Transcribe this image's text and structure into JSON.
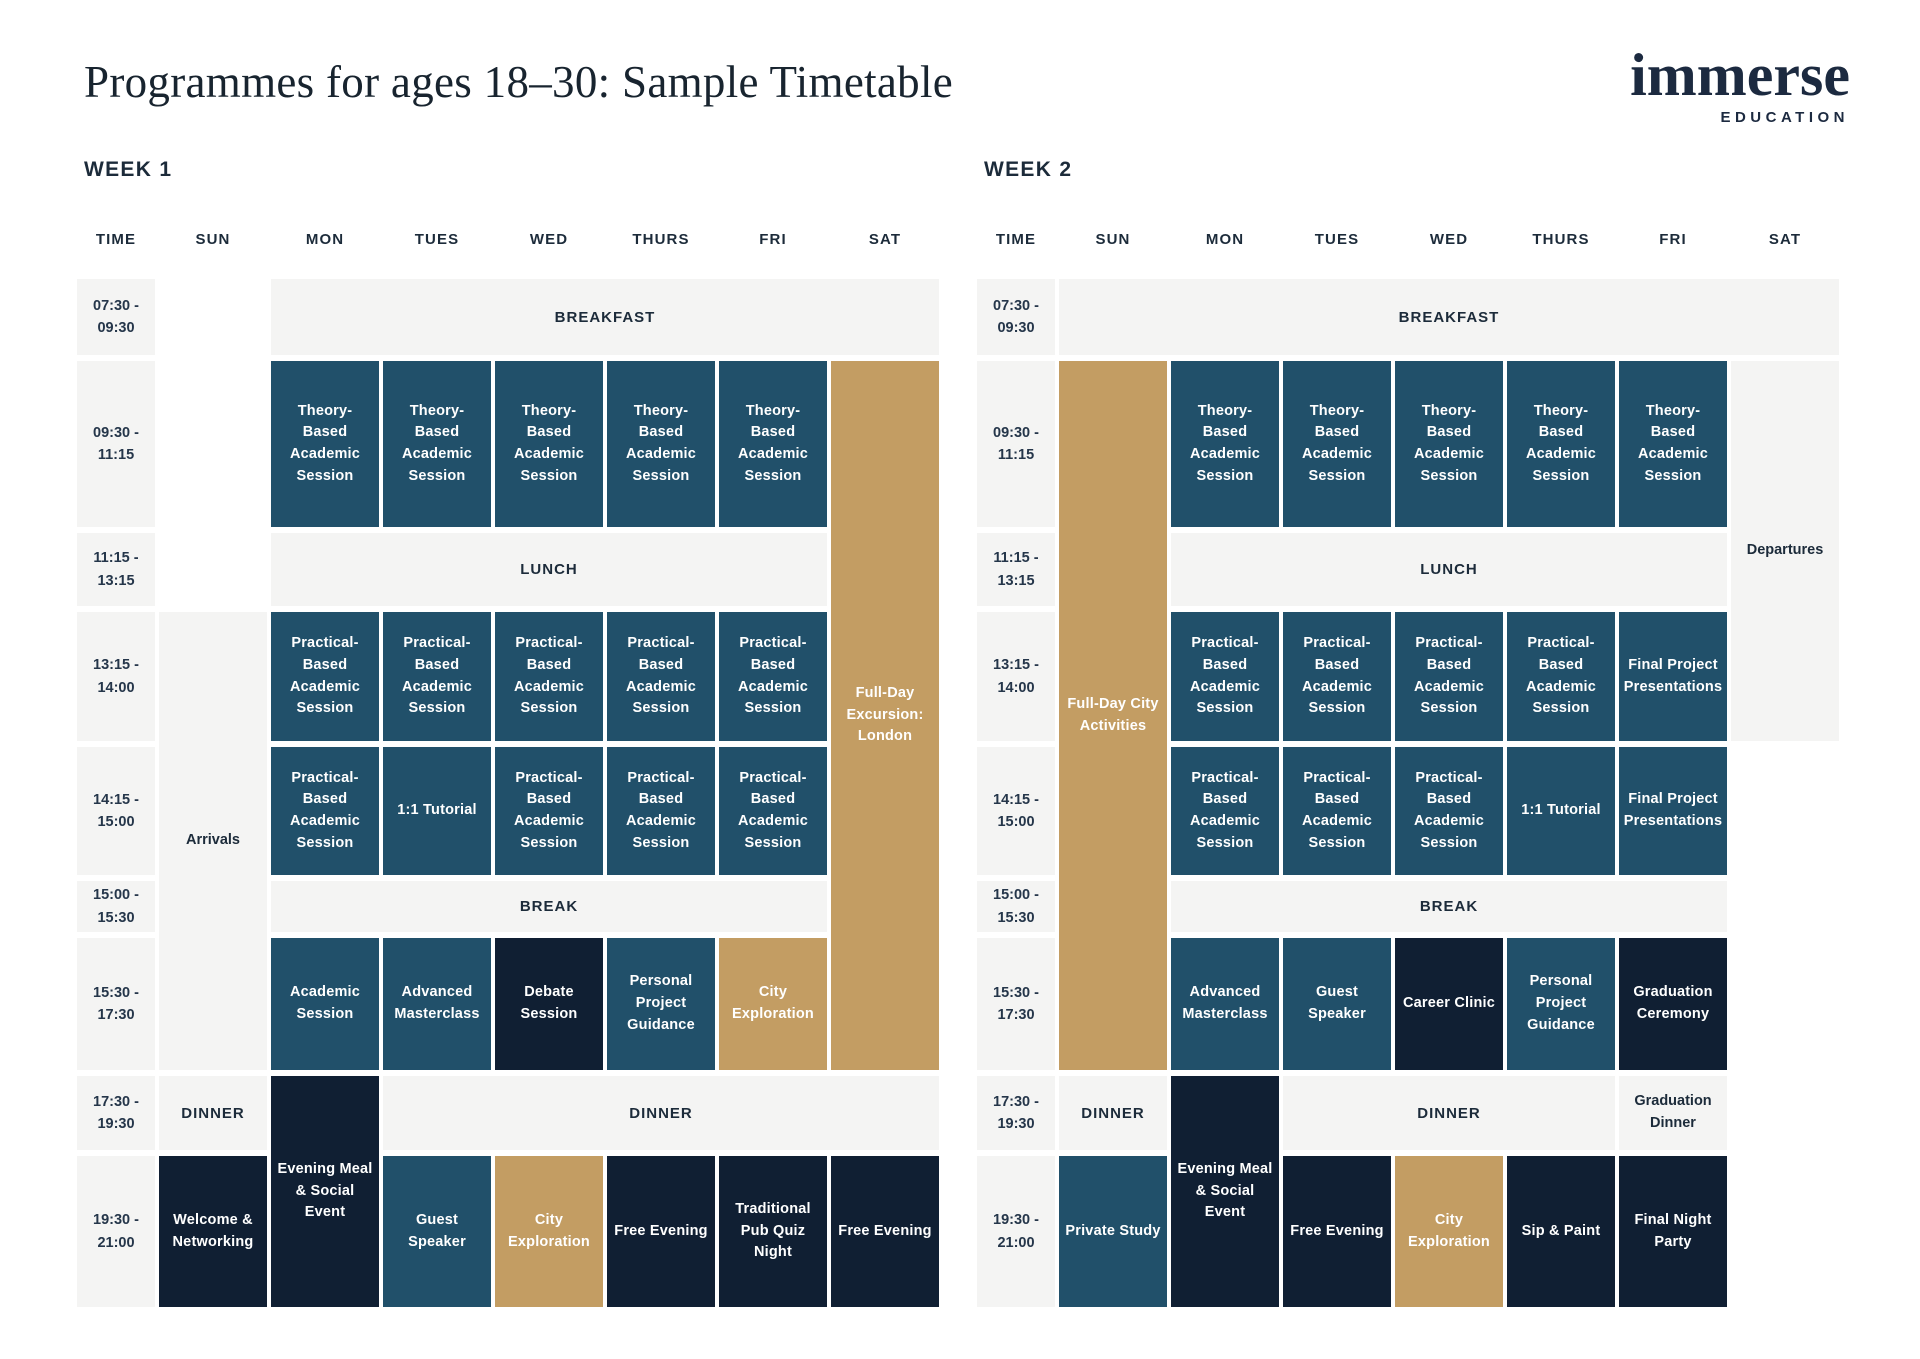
{
  "title": "Programmes for ages 18–30: Sample Timetable",
  "logo": {
    "brand": "immerse",
    "tagline": "EDUCATION"
  },
  "colors": {
    "teal": "#21506a",
    "navy": "#101f33",
    "gold": "#c39d63",
    "light_band": "#f4f4f3",
    "text_dark": "#1c2b3a",
    "background": "#ffffff"
  },
  "weeks": [
    {
      "label": "WEEK 1",
      "days": [
        "TIME",
        "SUN",
        "MON",
        "TUES",
        "WED",
        "THURS",
        "FRI",
        "SAT"
      ],
      "time_slots": [
        [
          "07:30 -",
          "09:30"
        ],
        [
          "09:30 -",
          "11:15"
        ],
        [
          "11:15 -",
          "13:15"
        ],
        [
          "13:15 -",
          "14:00"
        ],
        [
          "14:15 -",
          "15:00"
        ],
        [
          "15:00 -",
          "15:30"
        ],
        [
          "15:30 -",
          "17:30"
        ],
        [
          "17:30 -",
          "19:30"
        ],
        [
          "19:30 -",
          "21:00"
        ]
      ],
      "cells": [
        {
          "row": 1,
          "col": 2,
          "col_span": 6,
          "style": "meal",
          "label": "BREAKFAST"
        },
        {
          "row": 2,
          "col": 2,
          "style": "teal",
          "label": "Theory-Based Academic Session"
        },
        {
          "row": 2,
          "col": 3,
          "style": "teal",
          "label": "Theory-Based Academic Session"
        },
        {
          "row": 2,
          "col": 4,
          "style": "teal",
          "label": "Theory-Based Academic Session"
        },
        {
          "row": 2,
          "col": 5,
          "style": "teal",
          "label": "Theory-Based Academic Session"
        },
        {
          "row": 2,
          "col": 6,
          "style": "teal",
          "label": "Theory-Based Academic Session"
        },
        {
          "row": 2,
          "col": 7,
          "row_span": 6,
          "style": "gold",
          "label": "Full-Day Excursion: London"
        },
        {
          "row": 3,
          "col": 2,
          "col_span": 5,
          "style": "meal",
          "label": "LUNCH"
        },
        {
          "row": 4,
          "col": 1,
          "row_span": 4,
          "style": "plain",
          "label": "Arrivals"
        },
        {
          "row": 4,
          "col": 2,
          "style": "teal",
          "label": "Practical-Based Academic Session"
        },
        {
          "row": 4,
          "col": 3,
          "style": "teal",
          "label": "Practical-Based Academic Session"
        },
        {
          "row": 4,
          "col": 4,
          "style": "teal",
          "label": "Practical-Based Academic Session"
        },
        {
          "row": 4,
          "col": 5,
          "style": "teal",
          "label": "Practical-Based Academic Session"
        },
        {
          "row": 4,
          "col": 6,
          "style": "teal",
          "label": "Practical-Based Academic Session"
        },
        {
          "row": 5,
          "col": 2,
          "style": "teal",
          "label": "Practical-Based Academic Session"
        },
        {
          "row": 5,
          "col": 3,
          "style": "teal",
          "label": "1:1 Tutorial"
        },
        {
          "row": 5,
          "col": 4,
          "style": "teal",
          "label": "Practical-Based Academic Session"
        },
        {
          "row": 5,
          "col": 5,
          "style": "teal",
          "label": "Practical-Based Academic Session"
        },
        {
          "row": 5,
          "col": 6,
          "style": "teal",
          "label": "Practical-Based Academic Session"
        },
        {
          "row": 6,
          "col": 2,
          "col_span": 5,
          "style": "meal",
          "label": "BREAK"
        },
        {
          "row": 7,
          "col": 2,
          "style": "teal",
          "label": "Academic Session"
        },
        {
          "row": 7,
          "col": 3,
          "style": "teal",
          "label": "Advanced Masterclass"
        },
        {
          "row": 7,
          "col": 4,
          "style": "navy",
          "label": "Debate Session"
        },
        {
          "row": 7,
          "col": 5,
          "style": "teal",
          "label": "Personal Project Guidance"
        },
        {
          "row": 7,
          "col": 6,
          "style": "gold",
          "label": "City Exploration"
        },
        {
          "row": 8,
          "col": 1,
          "style": "meal",
          "label": "DINNER"
        },
        {
          "row": 8,
          "col": 2,
          "row_span": 2,
          "style": "navy",
          "label": "Evening Meal & Social Event"
        },
        {
          "row": 8,
          "col": 3,
          "col_span": 5,
          "style": "meal",
          "label": "DINNER"
        },
        {
          "row": 9,
          "col": 1,
          "style": "navy",
          "label": "Welcome & Networking"
        },
        {
          "row": 9,
          "col": 3,
          "style": "teal",
          "label": "Guest Speaker"
        },
        {
          "row": 9,
          "col": 4,
          "style": "gold",
          "label": "City Exploration"
        },
        {
          "row": 9,
          "col": 5,
          "style": "navy",
          "label": "Free Evening"
        },
        {
          "row": 9,
          "col": 6,
          "style": "navy",
          "label": "Traditional Pub Quiz Night"
        },
        {
          "row": 9,
          "col": 7,
          "style": "navy",
          "label": "Free Evening"
        }
      ]
    },
    {
      "label": "WEEK 2",
      "days": [
        "TIME",
        "SUN",
        "MON",
        "TUES",
        "WED",
        "THURS",
        "FRI",
        "SAT"
      ],
      "time_slots": [
        [
          "07:30 -",
          "09:30"
        ],
        [
          "09:30 -",
          "11:15"
        ],
        [
          "11:15 -",
          "13:15"
        ],
        [
          "13:15 -",
          "14:00"
        ],
        [
          "14:15 -",
          "15:00"
        ],
        [
          "15:00 -",
          "15:30"
        ],
        [
          "15:30 -",
          "17:30"
        ],
        [
          "17:30 -",
          "19:30"
        ],
        [
          "19:30 -",
          "21:00"
        ]
      ],
      "cells": [
        {
          "row": 1,
          "col": 1,
          "col_span": 7,
          "style": "meal",
          "label": "BREAKFAST"
        },
        {
          "row": 2,
          "col": 1,
          "row_span": 6,
          "style": "gold",
          "label": "Full-Day City Activities"
        },
        {
          "row": 2,
          "col": 2,
          "style": "teal",
          "label": "Theory-Based Academic Session"
        },
        {
          "row": 2,
          "col": 3,
          "style": "teal",
          "label": "Theory-Based Academic Session"
        },
        {
          "row": 2,
          "col": 4,
          "style": "teal",
          "label": "Theory-Based Academic Session"
        },
        {
          "row": 2,
          "col": 5,
          "style": "teal",
          "label": "Theory-Based Academic Session"
        },
        {
          "row": 2,
          "col": 6,
          "style": "teal",
          "label": "Theory-Based Academic Session"
        },
        {
          "row": 2,
          "col": 7,
          "row_span": 3,
          "style": "plain",
          "label": "Departures"
        },
        {
          "row": 3,
          "col": 2,
          "col_span": 5,
          "style": "meal",
          "label": "LUNCH"
        },
        {
          "row": 4,
          "col": 2,
          "style": "teal",
          "label": "Practical-Based Academic Session"
        },
        {
          "row": 4,
          "col": 3,
          "style": "teal",
          "label": "Practical-Based Academic Session"
        },
        {
          "row": 4,
          "col": 4,
          "style": "teal",
          "label": "Practical-Based Academic Session"
        },
        {
          "row": 4,
          "col": 5,
          "style": "teal",
          "label": "Practical-Based Academic Session"
        },
        {
          "row": 4,
          "col": 6,
          "style": "teal",
          "label": "Final Project Presentations"
        },
        {
          "row": 5,
          "col": 2,
          "style": "teal",
          "label": "Practical-Based Academic Session"
        },
        {
          "row": 5,
          "col": 3,
          "style": "teal",
          "label": "Practical-Based Academic Session"
        },
        {
          "row": 5,
          "col": 4,
          "style": "teal",
          "label": "Practical-Based Academic Session"
        },
        {
          "row": 5,
          "col": 5,
          "style": "teal",
          "label": "1:1 Tutorial"
        },
        {
          "row": 5,
          "col": 6,
          "style": "teal",
          "label": "Final Project Presentations"
        },
        {
          "row": 6,
          "col": 2,
          "col_span": 5,
          "style": "meal",
          "label": "BREAK"
        },
        {
          "row": 7,
          "col": 2,
          "style": "teal",
          "label": "Advanced Masterclass"
        },
        {
          "row": 7,
          "col": 3,
          "style": "teal",
          "label": "Guest Speaker"
        },
        {
          "row": 7,
          "col": 4,
          "style": "navy",
          "label": "Career Clinic"
        },
        {
          "row": 7,
          "col": 5,
          "style": "teal",
          "label": "Personal Project Guidance"
        },
        {
          "row": 7,
          "col": 6,
          "style": "navy",
          "label": "Graduation Ceremony"
        },
        {
          "row": 8,
          "col": 1,
          "style": "meal",
          "label": "DINNER"
        },
        {
          "row": 8,
          "col": 2,
          "row_span": 2,
          "style": "navy",
          "label": "Evening Meal & Social Event"
        },
        {
          "row": 8,
          "col": 3,
          "col_span": 3,
          "style": "meal",
          "label": "DINNER"
        },
        {
          "row": 8,
          "col": 6,
          "style": "plain",
          "label": "Graduation Dinner"
        },
        {
          "row": 9,
          "col": 1,
          "style": "teal",
          "label": "Private Study"
        },
        {
          "row": 9,
          "col": 3,
          "style": "navy",
          "label": "Free Evening"
        },
        {
          "row": 9,
          "col": 4,
          "style": "gold",
          "label": "City Exploration"
        },
        {
          "row": 9,
          "col": 5,
          "style": "navy",
          "label": "Sip & Paint"
        },
        {
          "row": 9,
          "col": 6,
          "style": "navy",
          "label": "Final Night Party"
        }
      ]
    }
  ]
}
